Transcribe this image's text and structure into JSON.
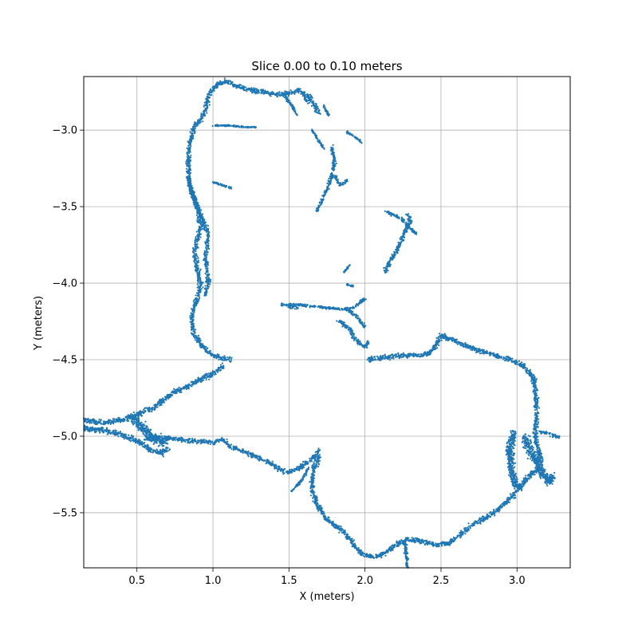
{
  "chart_data": {
    "type": "scatter",
    "title": "Slice 0.00 to 0.10 meters",
    "xlabel": "X (meters)",
    "ylabel": "Y (meters)",
    "xlim": [
      0.15,
      3.35
    ],
    "ylim": [
      -5.86,
      -2.65
    ],
    "xticks": [
      0.5,
      1.0,
      1.5,
      2.0,
      2.5,
      3.0
    ],
    "xtick_labels": [
      "0.5",
      "1.0",
      "1.5",
      "2.0",
      "2.5",
      "3.0"
    ],
    "yticks": [
      -3.0,
      -3.5,
      -4.0,
      -4.5,
      -5.0,
      -5.5
    ],
    "ytick_labels": [
      "−3.0",
      "−3.5",
      "−4.0",
      "−4.5",
      "−5.0",
      "−5.5"
    ],
    "grid": true,
    "marker_color": "#1f77b4",
    "series": [
      {
        "segments": [
          {
            "points": [
              [
                0.15,
                -4.9
              ],
              [
                0.3,
                -4.91
              ],
              [
                0.42,
                -4.89
              ],
              [
                0.5,
                -4.86
              ],
              [
                0.6,
                -4.82
              ],
              [
                0.68,
                -4.76
              ],
              [
                0.73,
                -4.72
              ],
              [
                0.82,
                -4.68
              ],
              [
                0.92,
                -4.63
              ],
              [
                1.02,
                -4.58
              ],
              [
                1.07,
                -4.54
              ]
            ],
            "width": 0.05
          },
          {
            "points": [
              [
                0.15,
                -4.95
              ],
              [
                0.25,
                -4.96
              ],
              [
                0.32,
                -4.97
              ],
              [
                0.4,
                -4.99
              ],
              [
                0.48,
                -5.02
              ],
              [
                0.55,
                -5.06
              ],
              [
                0.6,
                -5.1
              ],
              [
                0.67,
                -5.11
              ],
              [
                0.7,
                -5.08
              ]
            ],
            "width": 0.05
          },
          {
            "points": [
              [
                0.48,
                -4.88
              ],
              [
                0.54,
                -4.95
              ],
              [
                0.6,
                -5.0
              ],
              [
                0.66,
                -5.04
              ],
              [
                0.7,
                -5.02
              ]
            ],
            "width": 0.09
          },
          {
            "points": [
              [
                0.55,
                -5.02
              ],
              [
                0.7,
                -5.01
              ],
              [
                0.85,
                -5.03
              ],
              [
                1.0,
                -5.04
              ],
              [
                1.07,
                -5.02
              ],
              [
                1.1,
                -5.06
              ],
              [
                1.2,
                -5.1
              ],
              [
                1.3,
                -5.14
              ],
              [
                1.4,
                -5.19
              ],
              [
                1.48,
                -5.24
              ],
              [
                1.52,
                -5.23
              ],
              [
                1.58,
                -5.2
              ],
              [
                1.65,
                -5.15
              ],
              [
                1.7,
                -5.09
              ]
            ],
            "width": 0.04
          },
          {
            "points": [
              [
                1.12,
                -4.5
              ],
              [
                1.05,
                -4.49
              ],
              [
                0.98,
                -4.46
              ],
              [
                0.92,
                -4.4
              ],
              [
                0.87,
                -4.32
              ],
              [
                0.86,
                -4.22
              ],
              [
                0.89,
                -4.12
              ],
              [
                0.92,
                -4.02
              ],
              [
                0.9,
                -3.92
              ],
              [
                0.88,
                -3.8
              ],
              [
                0.9,
                -3.7
              ],
              [
                0.92,
                -3.62
              ],
              [
                0.9,
                -3.52
              ],
              [
                0.87,
                -3.44
              ],
              [
                0.85,
                -3.36
              ],
              [
                0.84,
                -3.26
              ],
              [
                0.84,
                -3.14
              ],
              [
                0.86,
                -3.04
              ],
              [
                0.88,
                -2.97
              ],
              [
                0.92,
                -2.93
              ],
              [
                0.95,
                -2.88
              ],
              [
                0.96,
                -2.81
              ],
              [
                0.99,
                -2.74
              ],
              [
                1.03,
                -2.7
              ],
              [
                1.08,
                -2.68
              ],
              [
                1.15,
                -2.71
              ],
              [
                1.24,
                -2.74
              ],
              [
                1.33,
                -2.75
              ],
              [
                1.42,
                -2.77
              ],
              [
                1.5,
                -2.76
              ],
              [
                1.57,
                -2.74
              ],
              [
                1.63,
                -2.78
              ],
              [
                1.67,
                -2.84
              ],
              [
                1.7,
                -2.89
              ]
            ],
            "width": 0.045
          },
          {
            "points": [
              [
                0.83,
                -3.3
              ],
              [
                0.87,
                -3.42
              ],
              [
                0.93,
                -3.58
              ],
              [
                0.97,
                -3.68
              ],
              [
                0.95,
                -3.84
              ],
              [
                0.97,
                -3.98
              ],
              [
                0.95,
                -4.08
              ]
            ],
            "width": 0.04
          },
          {
            "points": [
              [
                1.0,
                -2.97
              ],
              [
                1.12,
                -2.97
              ],
              [
                1.2,
                -2.98
              ],
              [
                1.28,
                -2.98
              ]
            ],
            "width": 0.015
          },
          {
            "points": [
              [
                1.0,
                -3.34
              ],
              [
                1.06,
                -3.36
              ],
              [
                1.12,
                -3.38
              ]
            ],
            "width": 0.02
          },
          {
            "points": [
              [
                1.46,
                -2.76
              ],
              [
                1.52,
                -2.84
              ],
              [
                1.55,
                -2.9
              ]
            ],
            "width": 0.025
          },
          {
            "points": [
              [
                1.7,
                -5.12
              ],
              [
                1.66,
                -5.22
              ],
              [
                1.65,
                -5.33
              ],
              [
                1.68,
                -5.44
              ],
              [
                1.74,
                -5.53
              ],
              [
                1.81,
                -5.59
              ],
              [
                1.88,
                -5.64
              ],
              [
                1.92,
                -5.7
              ],
              [
                1.97,
                -5.76
              ],
              [
                2.05,
                -5.79
              ],
              [
                2.13,
                -5.77
              ],
              [
                2.2,
                -5.71
              ],
              [
                2.27,
                -5.68
              ],
              [
                2.35,
                -5.68
              ],
              [
                2.45,
                -5.71
              ],
              [
                2.55,
                -5.7
              ],
              [
                2.63,
                -5.64
              ],
              [
                2.72,
                -5.57
              ],
              [
                2.82,
                -5.52
              ],
              [
                2.9,
                -5.46
              ],
              [
                2.97,
                -5.39
              ],
              [
                3.02,
                -5.33
              ],
              [
                3.07,
                -5.27
              ],
              [
                3.13,
                -5.22
              ],
              [
                3.16,
                -5.15
              ],
              [
                3.13,
                -5.05
              ],
              [
                3.12,
                -4.95
              ],
              [
                3.13,
                -4.85
              ],
              [
                3.12,
                -4.72
              ],
              [
                3.11,
                -4.62
              ],
              [
                3.04,
                -4.54
              ],
              [
                2.96,
                -4.5
              ],
              [
                2.85,
                -4.47
              ],
              [
                2.72,
                -4.43
              ],
              [
                2.6,
                -4.38
              ],
              [
                2.5,
                -4.34
              ],
              [
                2.47,
                -4.4
              ],
              [
                2.42,
                -4.46
              ],
              [
                2.35,
                -4.47
              ],
              [
                2.25,
                -4.47
              ],
              [
                2.18,
                -4.48
              ],
              [
                2.1,
                -4.49
              ],
              [
                2.02,
                -4.5
              ]
            ],
            "width": 0.045
          },
          {
            "points": [
              [
                2.98,
                -4.97
              ],
              [
                2.95,
                -5.08
              ],
              [
                2.96,
                -5.2
              ],
              [
                2.98,
                -5.3
              ],
              [
                3.02,
                -5.35
              ]
            ],
            "width": 0.07
          },
          {
            "points": [
              [
                3.05,
                -5.0
              ],
              [
                3.1,
                -5.12
              ],
              [
                3.16,
                -5.22
              ],
              [
                3.21,
                -5.3
              ],
              [
                3.23,
                -5.25
              ]
            ],
            "width": 0.08
          },
          {
            "points": [
              [
                3.15,
                -4.97
              ],
              [
                3.22,
                -4.99
              ],
              [
                3.28,
                -5.01
              ]
            ],
            "width": 0.03
          },
          {
            "points": [
              [
                2.26,
                -5.68
              ],
              [
                2.27,
                -5.76
              ],
              [
                2.28,
                -5.86
              ]
            ],
            "width": 0.03
          },
          {
            "points": [
              [
                1.63,
                -5.21
              ],
              [
                1.58,
                -5.29
              ],
              [
                1.52,
                -5.36
              ]
            ],
            "width": 0.025
          },
          {
            "points": [
              [
                1.45,
                -4.14
              ],
              [
                1.55,
                -4.14
              ],
              [
                1.65,
                -4.15
              ],
              [
                1.75,
                -4.16
              ],
              [
                1.85,
                -4.17
              ],
              [
                1.93,
                -4.16
              ],
              [
                2.0,
                -4.1
              ]
            ],
            "width": 0.025
          },
          {
            "points": [
              [
                1.5,
                -4.15
              ],
              [
                1.56,
                -4.16
              ]
            ],
            "width": 0.04
          },
          {
            "points": [
              [
                1.82,
                -4.24
              ],
              [
                1.9,
                -4.3
              ],
              [
                1.94,
                -4.37
              ],
              [
                2.0,
                -4.42
              ],
              [
                2.02,
                -4.38
              ]
            ],
            "width": 0.04
          },
          {
            "points": [
              [
                1.88,
                -4.17
              ],
              [
                1.95,
                -4.22
              ],
              [
                2.0,
                -4.29
              ]
            ],
            "width": 0.03
          },
          {
            "points": [
              [
                1.68,
                -3.54
              ],
              [
                1.72,
                -3.45
              ],
              [
                1.76,
                -3.37
              ],
              [
                1.78,
                -3.3
              ],
              [
                1.8,
                -3.2
              ],
              [
                1.78,
                -3.1
              ]
            ],
            "width": 0.03
          },
          {
            "points": [
              [
                1.8,
                -3.3
              ],
              [
                1.84,
                -3.36
              ],
              [
                1.88,
                -3.33
              ]
            ],
            "width": 0.025
          },
          {
            "points": [
              [
                2.13,
                -3.93
              ],
              [
                2.17,
                -3.85
              ],
              [
                2.21,
                -3.78
              ],
              [
                2.24,
                -3.72
              ],
              [
                2.27,
                -3.65
              ],
              [
                2.3,
                -3.6
              ],
              [
                2.28,
                -3.55
              ]
            ],
            "width": 0.04
          },
          {
            "points": [
              [
                2.14,
                -3.53
              ],
              [
                2.24,
                -3.58
              ],
              [
                2.3,
                -3.64
              ],
              [
                2.34,
                -3.68
              ]
            ],
            "width": 0.03
          },
          {
            "points": [
              [
                1.88,
                -3.01
              ],
              [
                1.94,
                -3.05
              ],
              [
                1.98,
                -3.08
              ]
            ],
            "width": 0.018
          },
          {
            "points": [
              [
                1.65,
                -3.0
              ],
              [
                1.69,
                -3.06
              ],
              [
                1.73,
                -3.12
              ]
            ],
            "width": 0.018
          },
          {
            "points": [
              [
                1.73,
                -2.84
              ],
              [
                1.76,
                -2.9
              ]
            ],
            "width": 0.02
          },
          {
            "points": [
              [
                1.6,
                -2.78
              ],
              [
                1.63,
                -2.82
              ]
            ],
            "width": 0.03
          },
          {
            "points": [
              [
                1.86,
                -3.93
              ],
              [
                1.9,
                -3.88
              ]
            ],
            "width": 0.015
          },
          {
            "points": [
              [
                1.88,
                -4.01
              ],
              [
                1.93,
                -4.02
              ]
            ],
            "width": 0.015
          }
        ]
      }
    ]
  }
}
